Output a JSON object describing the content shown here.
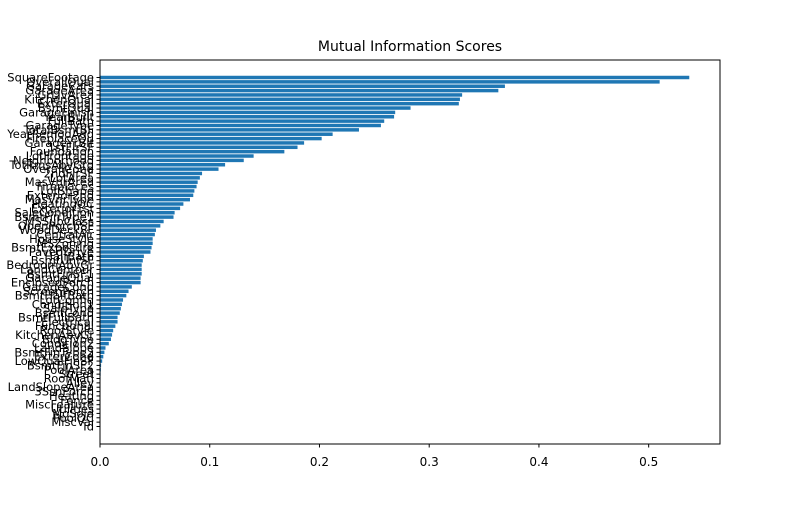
{
  "chart_data": {
    "type": "bar",
    "orientation": "horizontal",
    "title": "Mutual Information Scores",
    "xlabel": "",
    "ylabel": "",
    "xlim": [
      0.0,
      0.565
    ],
    "x_ticks": [
      "0.0",
      "0.1",
      "0.2",
      "0.3",
      "0.4",
      "0.5"
    ],
    "grid": false,
    "color": "#1f77b4",
    "categories": [
      "SquareFootage",
      "OverallQual",
      "GarageCars",
      "GarageArea",
      "GrLivArea",
      "KitchenQual",
      "ExterQual",
      "BsmtQual",
      "GarageFinish",
      "YearBuilt",
      "FullBath",
      "GarageType",
      "TotalBsmtSF",
      "YearRemodAdd",
      "FireplaceQu",
      "GarageYrBlt",
      "1stFlrSF",
      "Foundation",
      "LotFrontage",
      "Neighborhood",
      "TotRmsAbvGrd",
      "OverallCond",
      "2ndFlrSF",
      "LotArea",
      "MasVnrArea",
      "Fireplaces",
      "LotShape",
      "Exterior2nd",
      "MasVnrType",
      "HeatingQC",
      "Exterior1st",
      "SaleCondition",
      "BsmtFinType1",
      "MSSubClass",
      "OpenPorchSF",
      "WoodDeckSF",
      "CentralAir",
      "HouseStyle",
      "MSZoning",
      "BsmtExposure",
      "PavedDrive",
      "HalfBath",
      "BsmtUnfSF",
      "BedroomAbvGr",
      "LandContour",
      "BsmtFinSF1",
      "GarageQual",
      "EnclosedPorch",
      "GarageCond",
      "ScreenPorch",
      "BsmtHalfBath",
      "LotConfig",
      "Condition1",
      "SaleType",
      "BsmtCond",
      "BsmtFullBath",
      "Electrical",
      "Functional",
      "RoofStyle",
      "KitchenAbvGr",
      "BldgType",
      "Condition2",
      "LandSlope",
      "BsmtFinType2",
      "ExterCond",
      "LowQualFinSF",
      "BsmtFinSF2",
      "PoolArea",
      "Street",
      "RoofMatl",
      "Alley",
      "LandSlopeArea",
      "3SsnPorch",
      "Heating",
      "Fence",
      "MiscFeature",
      "Utilities",
      "MoSold",
      "PoolQC",
      "MiscVal",
      "Id"
    ],
    "values": [
      0.537,
      0.51,
      0.369,
      0.363,
      0.33,
      0.328,
      0.327,
      0.283,
      0.269,
      0.268,
      0.259,
      0.256,
      0.236,
      0.212,
      0.202,
      0.186,
      0.18,
      0.168,
      0.14,
      0.131,
      0.114,
      0.108,
      0.093,
      0.091,
      0.089,
      0.088,
      0.086,
      0.085,
      0.082,
      0.076,
      0.073,
      0.068,
      0.067,
      0.058,
      0.055,
      0.051,
      0.05,
      0.048,
      0.048,
      0.047,
      0.046,
      0.04,
      0.039,
      0.038,
      0.038,
      0.038,
      0.037,
      0.037,
      0.029,
      0.026,
      0.024,
      0.021,
      0.02,
      0.019,
      0.018,
      0.016,
      0.016,
      0.014,
      0.012,
      0.011,
      0.01,
      0.008,
      0.005,
      0.004,
      0.003,
      0.002,
      0.001,
      0.0008,
      0.0006,
      0.0005,
      0.0004,
      0.0003,
      0.0002,
      0.0001,
      0.0,
      0.0,
      0.0,
      0.0,
      0.0,
      0.0,
      0.0
    ]
  }
}
